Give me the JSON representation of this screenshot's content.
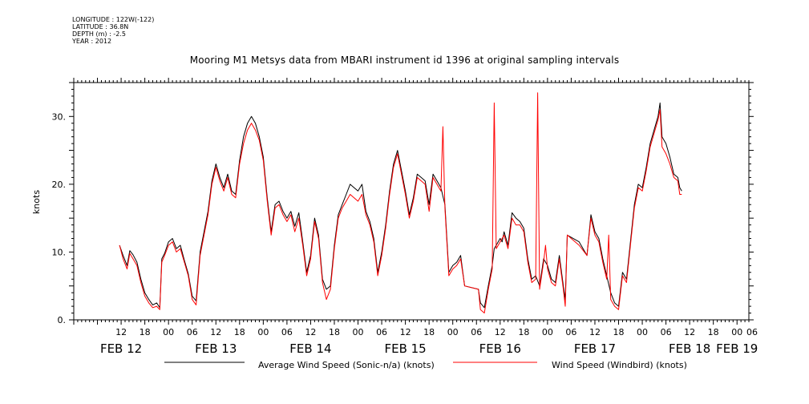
{
  "meta": {
    "longitude": "LONGITUDE : 122W(-122)",
    "latitude": "LATITUDE : 36.8N",
    "depth": "DEPTH (m) : -2.5",
    "year": "YEAR : 2012"
  },
  "chart_data": {
    "type": "line",
    "title": "Mooring M1 Metsys data from MBARI instrument id 1396 at original sampling intervals",
    "xlabel": "",
    "ylabel": "knots",
    "ylim": [
      0,
      35
    ],
    "xlim": [
      0,
      171
    ],
    "x_units": "hours from Feb 11 2012 00:00",
    "yticks": [
      0,
      10,
      20,
      30
    ],
    "ytick_labels": [
      "0.",
      "10.",
      "20.",
      "30."
    ],
    "hour_ticks": [
      {
        "h": 12,
        "label": "12"
      },
      {
        "h": 18,
        "label": "18"
      },
      {
        "h": 24,
        "label": "00"
      },
      {
        "h": 30,
        "label": "06"
      },
      {
        "h": 36,
        "label": "12"
      },
      {
        "h": 42,
        "label": "18"
      },
      {
        "h": 48,
        "label": "00"
      },
      {
        "h": 54,
        "label": "06"
      },
      {
        "h": 60,
        "label": "12"
      },
      {
        "h": 66,
        "label": "18"
      },
      {
        "h": 72,
        "label": "00"
      },
      {
        "h": 78,
        "label": "06"
      },
      {
        "h": 84,
        "label": "12"
      },
      {
        "h": 90,
        "label": "18"
      },
      {
        "h": 96,
        "label": "00"
      },
      {
        "h": 102,
        "label": "06"
      },
      {
        "h": 108,
        "label": "12"
      },
      {
        "h": 114,
        "label": "18"
      },
      {
        "h": 120,
        "label": "00"
      },
      {
        "h": 126,
        "label": "06"
      },
      {
        "h": 132,
        "label": "12"
      },
      {
        "h": 138,
        "label": "18"
      },
      {
        "h": 144,
        "label": "00"
      },
      {
        "h": 150,
        "label": "06"
      },
      {
        "h": 156,
        "label": "12"
      },
      {
        "h": 162,
        "label": "18"
      },
      {
        "h": 168,
        "label": "00"
      },
      {
        "h": 174,
        "label": "06"
      }
    ],
    "day_labels": [
      {
        "h": 12,
        "label": "FEB 12"
      },
      {
        "h": 36,
        "label": "FEB 13"
      },
      {
        "h": 60,
        "label": "FEB 14"
      },
      {
        "h": 84,
        "label": "FEB 15"
      },
      {
        "h": 108,
        "label": "FEB 16"
      },
      {
        "h": 132,
        "label": "FEB 17"
      },
      {
        "h": 156,
        "label": "FEB 18"
      },
      {
        "h": 168,
        "label": "FEB 19"
      }
    ],
    "grid": false,
    "legend_position": "bottom",
    "series": [
      {
        "name": "Average Wind Speed (Sonic-n/a) (knots)",
        "color": "#000000",
        "points": [
          [
            11.6,
            11
          ],
          [
            12.5,
            9.5
          ],
          [
            13.5,
            8
          ],
          [
            14.2,
            10.2
          ],
          [
            15,
            9.6
          ],
          [
            16,
            8.5
          ],
          [
            17,
            6
          ],
          [
            18,
            4
          ],
          [
            19,
            3
          ],
          [
            20,
            2.2
          ],
          [
            21,
            2.5
          ],
          [
            21.8,
            1.8
          ],
          [
            22.3,
            9
          ],
          [
            23,
            9.8
          ],
          [
            24,
            11.5
          ],
          [
            25,
            12
          ],
          [
            26,
            10.5
          ],
          [
            27,
            11
          ],
          [
            28,
            8.8
          ],
          [
            29,
            6.8
          ],
          [
            30,
            3.5
          ],
          [
            31,
            2.8
          ],
          [
            32,
            10
          ],
          [
            33,
            13
          ],
          [
            34,
            16
          ],
          [
            35,
            20.5
          ],
          [
            36,
            23
          ],
          [
            37,
            21
          ],
          [
            38,
            19.5
          ],
          [
            39,
            21.5
          ],
          [
            40,
            19
          ],
          [
            41,
            18.5
          ],
          [
            42,
            23.5
          ],
          [
            43,
            27
          ],
          [
            44,
            29
          ],
          [
            45,
            30
          ],
          [
            46,
            29
          ],
          [
            47,
            27
          ],
          [
            48,
            24
          ],
          [
            49,
            18
          ],
          [
            50,
            13
          ],
          [
            51,
            17
          ],
          [
            52,
            17.5
          ],
          [
            53,
            16
          ],
          [
            54,
            15
          ],
          [
            55,
            16
          ],
          [
            56,
            13.8
          ],
          [
            57,
            15.8
          ],
          [
            58,
            11.5
          ],
          [
            59,
            7
          ],
          [
            60,
            9.5
          ],
          [
            61,
            15
          ],
          [
            62,
            12.5
          ],
          [
            63,
            6
          ],
          [
            64,
            4.5
          ],
          [
            65,
            5
          ],
          [
            66,
            11
          ],
          [
            67,
            15.5
          ],
          [
            68,
            17
          ],
          [
            69,
            18.5
          ],
          [
            70,
            20
          ],
          [
            71,
            19.5
          ],
          [
            72,
            19
          ],
          [
            73,
            20
          ],
          [
            74,
            16
          ],
          [
            75,
            14.5
          ],
          [
            76,
            12
          ],
          [
            77,
            7
          ],
          [
            78,
            10
          ],
          [
            79,
            14
          ],
          [
            80,
            19
          ],
          [
            81,
            23
          ],
          [
            82,
            25
          ],
          [
            83,
            22
          ],
          [
            84,
            19
          ],
          [
            85,
            15.5
          ],
          [
            86,
            18
          ],
          [
            87,
            21.5
          ],
          [
            88,
            21
          ],
          [
            89,
            20.5
          ],
          [
            90,
            17
          ],
          [
            91,
            21.5
          ],
          [
            92,
            20.5
          ],
          [
            93,
            19.5
          ],
          [
            94,
            17
          ],
          [
            95,
            7
          ],
          [
            96,
            8
          ],
          [
            97,
            8.5
          ],
          [
            98,
            9.5
          ],
          [
            99,
            5
          ],
          [
            102.5,
            4.5
          ],
          [
            103,
            2.5
          ],
          [
            104,
            1.8
          ],
          [
            105,
            5
          ],
          [
            106,
            8
          ],
          [
            106.5,
            10.5
          ],
          [
            107,
            11
          ],
          [
            108,
            12
          ],
          [
            108.5,
            11.5
          ],
          [
            109,
            13
          ],
          [
            110,
            11
          ],
          [
            111,
            15.8
          ],
          [
            112,
            15
          ],
          [
            113,
            14.5
          ],
          [
            114,
            13.5
          ],
          [
            115,
            9
          ],
          [
            116,
            6
          ],
          [
            117,
            6.5
          ],
          [
            118,
            5
          ],
          [
            119,
            9
          ],
          [
            120,
            8
          ],
          [
            121,
            6
          ],
          [
            122,
            5.5
          ],
          [
            123,
            9.5
          ],
          [
            124,
            5
          ],
          [
            124.5,
            3
          ],
          [
            125,
            12.5
          ],
          [
            128,
            11.5
          ],
          [
            130,
            9.5
          ],
          [
            131,
            15.5
          ],
          [
            132,
            13
          ],
          [
            133,
            12
          ],
          [
            134,
            9
          ],
          [
            135,
            6.5
          ],
          [
            136,
            4
          ],
          [
            137,
            2.5
          ],
          [
            138,
            2
          ],
          [
            139,
            7
          ],
          [
            140,
            6
          ],
          [
            141,
            11.5
          ],
          [
            142,
            17
          ],
          [
            143,
            20
          ],
          [
            144,
            19.5
          ],
          [
            145,
            22.5
          ],
          [
            146,
            26
          ],
          [
            147,
            28
          ],
          [
            148,
            30
          ],
          [
            148.5,
            32
          ],
          [
            149,
            27
          ],
          [
            150,
            26
          ],
          [
            151,
            24
          ],
          [
            152,
            21.5
          ],
          [
            153,
            21
          ],
          [
            153.5,
            19.5
          ],
          [
            154,
            19
          ]
        ]
      },
      {
        "name": "Wind Speed (Windbird) (knots)",
        "color": "#ff0000",
        "points": [
          [
            11.6,
            11
          ],
          [
            12.5,
            9
          ],
          [
            13.5,
            7.5
          ],
          [
            14.2,
            9.8
          ],
          [
            15,
            9
          ],
          [
            16,
            8
          ],
          [
            17,
            5.5
          ],
          [
            18,
            3.5
          ],
          [
            19,
            2.5
          ],
          [
            20,
            1.8
          ],
          [
            21,
            2
          ],
          [
            21.8,
            1.5
          ],
          [
            22.3,
            8.5
          ],
          [
            23,
            9.5
          ],
          [
            24,
            11
          ],
          [
            25,
            11.5
          ],
          [
            26,
            10
          ],
          [
            27,
            10.5
          ],
          [
            28,
            8.5
          ],
          [
            29,
            6.5
          ],
          [
            30,
            3
          ],
          [
            31,
            2.2
          ],
          [
            32,
            9.5
          ],
          [
            33,
            12.5
          ],
          [
            34,
            15.5
          ],
          [
            35,
            20
          ],
          [
            36,
            22.5
          ],
          [
            37,
            20.5
          ],
          [
            38,
            19
          ],
          [
            39,
            21
          ],
          [
            40,
            18.5
          ],
          [
            41,
            18
          ],
          [
            42,
            23
          ],
          [
            43,
            26
          ],
          [
            44,
            28
          ],
          [
            45,
            29
          ],
          [
            46,
            28
          ],
          [
            47,
            26.5
          ],
          [
            48,
            23.5
          ],
          [
            49,
            17.5
          ],
          [
            50,
            12.5
          ],
          [
            51,
            16.5
          ],
          [
            52,
            17
          ],
          [
            53,
            15.5
          ],
          [
            54,
            14.5
          ],
          [
            55,
            15.5
          ],
          [
            56,
            13
          ],
          [
            57,
            15
          ],
          [
            58,
            11
          ],
          [
            59,
            6.5
          ],
          [
            60,
            9
          ],
          [
            61,
            14.5
          ],
          [
            62,
            12
          ],
          [
            63,
            5.5
          ],
          [
            64,
            3
          ],
          [
            65,
            4.5
          ],
          [
            66,
            10.5
          ],
          [
            67,
            15
          ],
          [
            68,
            16.5
          ],
          [
            69,
            17.5
          ],
          [
            70,
            18.5
          ],
          [
            71,
            18
          ],
          [
            72,
            17.5
          ],
          [
            73,
            18.5
          ],
          [
            74,
            15.5
          ],
          [
            75,
            14
          ],
          [
            76,
            11.5
          ],
          [
            77,
            6.5
          ],
          [
            78,
            9.5
          ],
          [
            79,
            13.5
          ],
          [
            80,
            18.5
          ],
          [
            81,
            22.5
          ],
          [
            82,
            24.5
          ],
          [
            83,
            21.5
          ],
          [
            84,
            18.5
          ],
          [
            85,
            15
          ],
          [
            86,
            17.5
          ],
          [
            87,
            21
          ],
          [
            88,
            20.5
          ],
          [
            89,
            20
          ],
          [
            90,
            16
          ],
          [
            91,
            21
          ],
          [
            92,
            20
          ],
          [
            93,
            19
          ],
          [
            93.5,
            28.5
          ],
          [
            94,
            16.5
          ],
          [
            95,
            6.5
          ],
          [
            96,
            7.5
          ],
          [
            97,
            8
          ],
          [
            98,
            9
          ],
          [
            99,
            5
          ],
          [
            102.5,
            4.5
          ],
          [
            103,
            1.5
          ],
          [
            104,
            1
          ],
          [
            105,
            4.5
          ],
          [
            106,
            7.5
          ],
          [
            106.5,
            32
          ],
          [
            107,
            10.5
          ],
          [
            108,
            11.5
          ],
          [
            109,
            12.5
          ],
          [
            110,
            10.5
          ],
          [
            111,
            15
          ],
          [
            112,
            14
          ],
          [
            113,
            14
          ],
          [
            114,
            13
          ],
          [
            115,
            8.5
          ],
          [
            116,
            5.5
          ],
          [
            117,
            6
          ],
          [
            117.5,
            33.5
          ],
          [
            118,
            4.5
          ],
          [
            119,
            8.5
          ],
          [
            119.5,
            11
          ],
          [
            120,
            7.5
          ],
          [
            121,
            5.5
          ],
          [
            122,
            5
          ],
          [
            123,
            9
          ],
          [
            124,
            4.5
          ],
          [
            124.5,
            2
          ],
          [
            125,
            12.5
          ],
          [
            128,
            11
          ],
          [
            130,
            9.5
          ],
          [
            131,
            15
          ],
          [
            132,
            12.5
          ],
          [
            133,
            11.5
          ],
          [
            134,
            8.5
          ],
          [
            135,
            6
          ],
          [
            135.5,
            12.5
          ],
          [
            136,
            3
          ],
          [
            137,
            2
          ],
          [
            138,
            1.5
          ],
          [
            139,
            6.5
          ],
          [
            140,
            5.5
          ],
          [
            141,
            11
          ],
          [
            142,
            16.5
          ],
          [
            143,
            19.5
          ],
          [
            144,
            19
          ],
          [
            145,
            22
          ],
          [
            146,
            25.5
          ],
          [
            147,
            27.5
          ],
          [
            148,
            29.5
          ],
          [
            148.5,
            31
          ],
          [
            149,
            25.5
          ],
          [
            150,
            24.5
          ],
          [
            151,
            23
          ],
          [
            152,
            21
          ],
          [
            153,
            20.5
          ],
          [
            153.5,
            18.5
          ],
          [
            154,
            18.5
          ]
        ]
      }
    ]
  }
}
